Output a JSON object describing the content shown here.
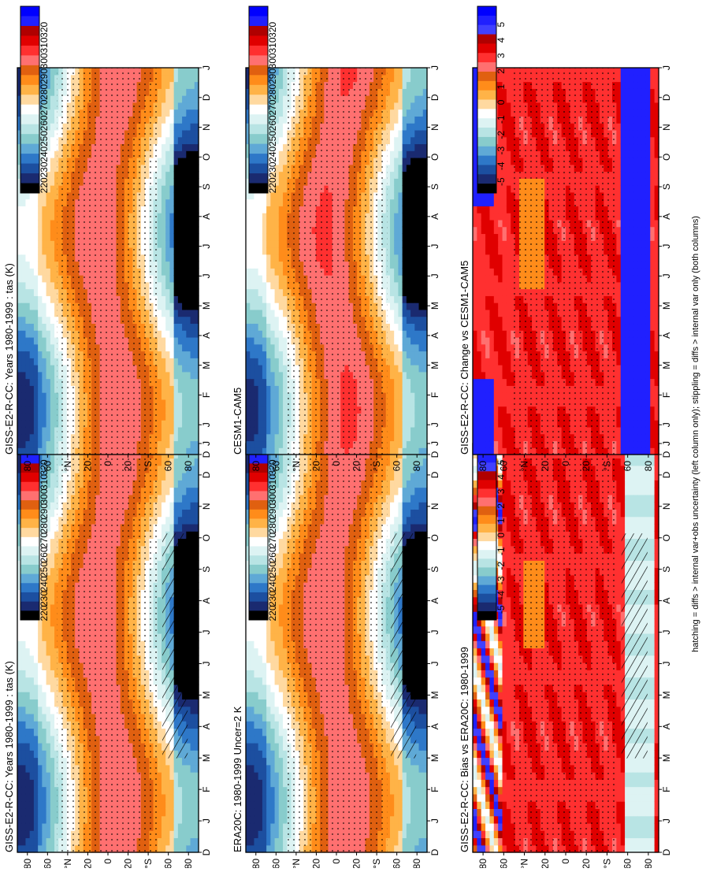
{
  "footnote": "hatching = diffs > internal var+obs uncertainty (left column only); stippling = diffs > internal var only (both columns)",
  "chart_data": [
    {
      "type": "heatmap",
      "id": "p1",
      "title": "GISS-E2-R-CC: Years 1980-1999 : tas (K)",
      "x_ticks": [
        "D",
        "J",
        "F",
        "M",
        "A",
        "M",
        "J",
        "J",
        "A",
        "S",
        "O",
        "N",
        "D",
        "J"
      ],
      "y_ticks": [
        "80",
        "60",
        "°N",
        "20",
        "0",
        "20",
        "°S",
        "60",
        "80"
      ],
      "units": "K",
      "field": "abs",
      "hatching": true,
      "colorbar_labels": [
        "320",
        "310",
        "300",
        "290",
        "280",
        "270",
        "260",
        "250",
        "240",
        "230",
        "220"
      ]
    },
    {
      "type": "heatmap",
      "id": "p2",
      "title": "GISS-E2-R-CC: Years 1980-1999 : tas (K)",
      "x_ticks": [
        "D",
        "J",
        "F",
        "M",
        "A",
        "M",
        "J",
        "J",
        "A",
        "S",
        "O",
        "N",
        "D",
        "J"
      ],
      "y_ticks": [
        "80",
        "60",
        "°N",
        "20",
        "0",
        "20",
        "°S",
        "60",
        "80"
      ],
      "units": "K",
      "field": "abs",
      "hatching": false,
      "colorbar_labels": [
        "320",
        "310",
        "300",
        "290",
        "280",
        "270",
        "260",
        "250",
        "240",
        "230",
        "220"
      ]
    },
    {
      "type": "heatmap",
      "id": "p3",
      "title": "ERA20C: 1980-1999 Uncer=2 K",
      "x_ticks": [
        "D",
        "J",
        "F",
        "M",
        "A",
        "M",
        "J",
        "J",
        "A",
        "S",
        "O",
        "N",
        "D",
        "J"
      ],
      "y_ticks": [
        "80",
        "60",
        "°N",
        "20",
        "0",
        "20",
        "°S",
        "60",
        "80"
      ],
      "units": "K",
      "field": "abs",
      "hatching": true,
      "colorbar_labels": [
        "320",
        "310",
        "300",
        "290",
        "280",
        "270",
        "260",
        "250",
        "240",
        "230",
        "220"
      ]
    },
    {
      "type": "heatmap",
      "id": "p4",
      "title": "CESM1-CAM5",
      "x_ticks": [
        "D",
        "J",
        "F",
        "M",
        "A",
        "M",
        "J",
        "J",
        "A",
        "S",
        "O",
        "N",
        "D",
        "J"
      ],
      "y_ticks": [
        "80",
        "60",
        "°N",
        "20",
        "0",
        "20",
        "°S",
        "60",
        "80"
      ],
      "units": "K",
      "field": "abs",
      "hatching": false,
      "colorbar_labels": [
        "320",
        "310",
        "300",
        "290",
        "280",
        "270",
        "260",
        "250",
        "240",
        "230",
        "220"
      ]
    },
    {
      "type": "heatmap",
      "id": "p5",
      "title": "GISS-E2-R-CC: Bias vs ERA20C: 1980-1999",
      "x_ticks": [
        "D",
        "J",
        "F",
        "M",
        "A",
        "M",
        "J",
        "J",
        "A",
        "S",
        "O",
        "N",
        "D",
        "J"
      ],
      "y_ticks": [
        "80",
        "60",
        "°N",
        "20",
        "0",
        "20",
        "°S",
        "60",
        "80"
      ],
      "units": "K",
      "field": "bias",
      "hatching": true,
      "colorbar_labels": [
        "5",
        "4",
        "3",
        "2",
        "1",
        "0",
        "-1",
        "-2",
        "-3",
        "-4",
        "-5"
      ]
    },
    {
      "type": "heatmap",
      "id": "p6",
      "title": "GISS-E2-R-CC: Change vs CESM1-CAM5",
      "x_ticks": [
        "D",
        "J",
        "F",
        "M",
        "A",
        "M",
        "J",
        "J",
        "A",
        "S",
        "O",
        "N",
        "D",
        "J"
      ],
      "y_ticks": [
        "80",
        "60",
        "°N",
        "20",
        "0",
        "20",
        "°S",
        "60",
        "80"
      ],
      "units": "K",
      "field": "change",
      "hatching": false,
      "colorbar_labels": [
        "5",
        "4",
        "3",
        "2",
        "1",
        "0",
        "-1",
        "-2",
        "-3",
        "-4",
        "-5"
      ]
    }
  ],
  "palette_abs": [
    "#0000ff",
    "#2020ff",
    "#b00000",
    "#e00000",
    "#ff3030",
    "#ff7070",
    "#e06010",
    "#ff8c1a",
    "#ffb347",
    "#ffd9a0",
    "#ffffff",
    "#ddf3f3",
    "#b8e4e4",
    "#88cccc",
    "#5fa9d6",
    "#2e78c8",
    "#1c4fa0",
    "#1a2a70",
    "#000000"
  ],
  "palette_diff": [
    "#0000ff",
    "#2020ff",
    "#4040ff",
    "#b00000",
    "#e00000",
    "#ff3030",
    "#ff7070",
    "#e06010",
    "#ff8c1a",
    "#ffb347",
    "#ffd9a0",
    "#ffffff",
    "#ddf3f3",
    "#b8e4e4",
    "#88cccc",
    "#5fa9d6",
    "#2e78c8",
    "#1c4fa0",
    "#1a2a70",
    "#000000"
  ]
}
